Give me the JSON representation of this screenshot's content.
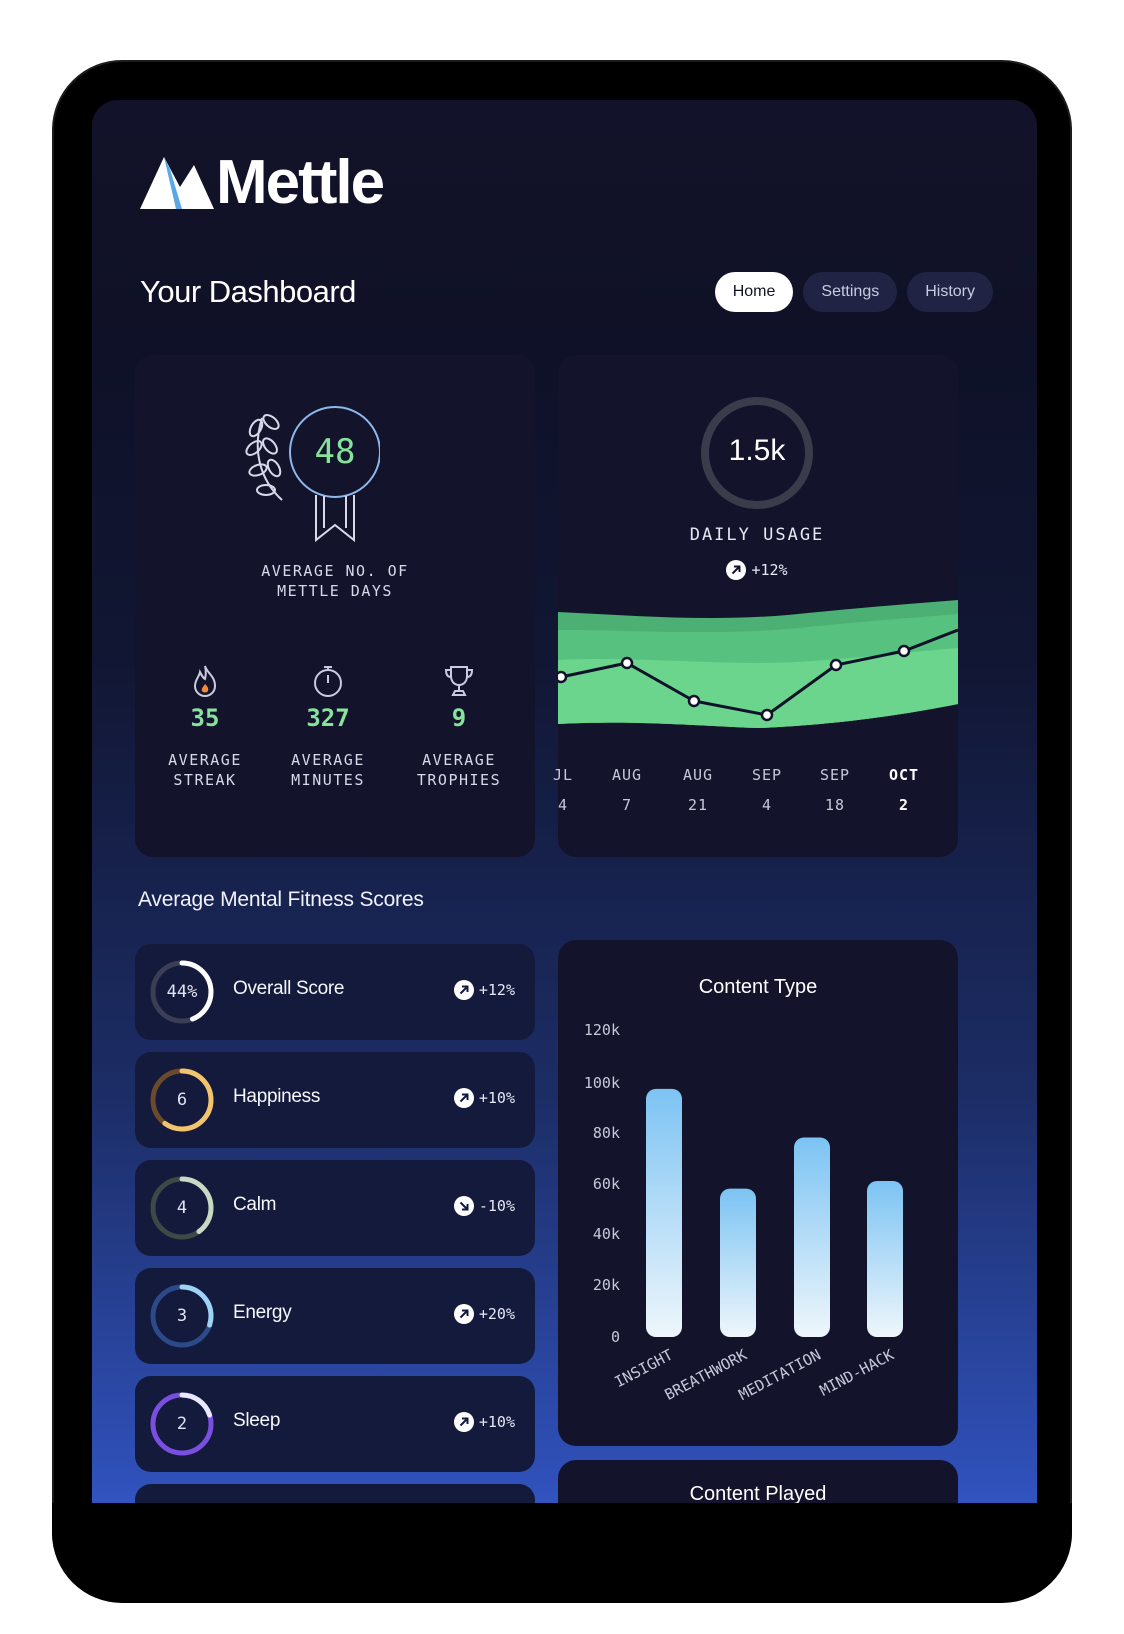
{
  "app": {
    "name": "Mettle"
  },
  "header": {
    "title": "Your Dashboard"
  },
  "nav": {
    "tabs": [
      {
        "label": "Home"
      },
      {
        "label": "Settings"
      },
      {
        "label": "History"
      }
    ]
  },
  "mettle_days": {
    "value": "48",
    "label_line1": "AVERAGE NO. OF",
    "label_line2": "METTLE DAYS"
  },
  "stats": [
    {
      "icon": "flame-icon",
      "value": "35",
      "label_line1": "AVERAGE",
      "label_line2": "STREAK"
    },
    {
      "icon": "stopwatch-icon",
      "value": "327",
      "label_line1": "AVERAGE",
      "label_line2": "MINUTES"
    },
    {
      "icon": "trophy-icon",
      "value": "9",
      "label_line1": "AVERAGE",
      "label_line2": "TROPHIES"
    }
  ],
  "daily_usage": {
    "value": "1.5k",
    "label": "DAILY USAGE",
    "delta": "+12%",
    "x_labels": [
      {
        "month": "JL",
        "day": "4"
      },
      {
        "month": "AUG",
        "day": "7"
      },
      {
        "month": "AUG",
        "day": "21"
      },
      {
        "month": "SEP",
        "day": "4"
      },
      {
        "month": "SEP",
        "day": "18"
      },
      {
        "month": "OCT",
        "day": "2"
      }
    ],
    "trend_values": [
      0.48,
      0.62,
      0.24,
      0.1,
      0.6,
      0.74,
      0.95
    ]
  },
  "scores_section": {
    "title": "Average Mental Fitness Scores"
  },
  "scores": [
    {
      "value": "44%",
      "name": "Overall Score",
      "delta": "+12%",
      "direction": "up",
      "fraction": 0.44,
      "color": "#ffffff",
      "track": "#3b3f55"
    },
    {
      "value": "6",
      "name": "Happiness",
      "delta": "+10%",
      "direction": "up",
      "fraction": 0.6,
      "color": "#f2c46d",
      "track": "#6b4a2a"
    },
    {
      "value": "4",
      "name": "Calm",
      "delta": "-10%",
      "direction": "down",
      "fraction": 0.4,
      "color": "#c7d9c4",
      "track": "#3b4a44"
    },
    {
      "value": "3",
      "name": "Energy",
      "delta": "+20%",
      "direction": "up",
      "fraction": 0.3,
      "color": "#9fd2f5",
      "track": "#2c4a8a"
    },
    {
      "value": "2",
      "name": "Sleep",
      "delta": "+10%",
      "direction": "up",
      "fraction": 0.2,
      "color": "#e8e8ff",
      "track": "#7a4fe0"
    }
  ],
  "chart_data": {
    "type": "bar",
    "title": "Content Type",
    "categories": [
      "INSIGHT",
      "BREATHWORK",
      "MEDITATION",
      "MIND-HACK"
    ],
    "values": [
      97000,
      58000,
      78000,
      61000
    ],
    "ylim": [
      0,
      120000
    ],
    "yticks": [
      "120k",
      "100k",
      "80k",
      "60k",
      "40k",
      "20k",
      "0"
    ],
    "grid": false
  },
  "content_played": {
    "title": "Content Played"
  }
}
